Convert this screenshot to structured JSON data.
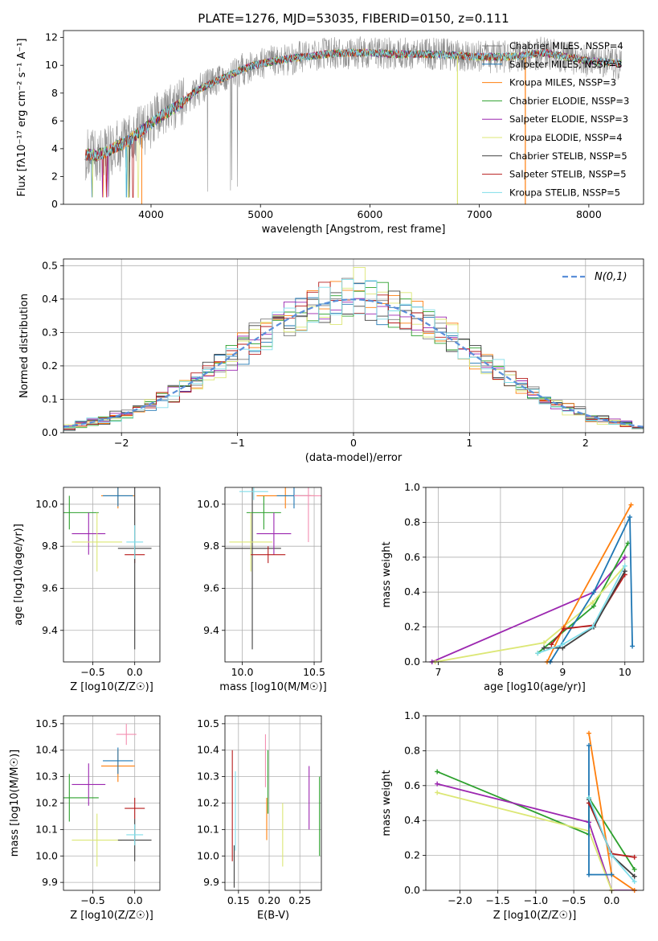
{
  "chart_data": [
    {
      "type": "line",
      "title": "PLATE=1276, MJD=53035, FIBERID=0150, z=0.111",
      "xlabel": "wavelength [Angstrom, rest frame]",
      "ylabel": "Flux [fλ10⁻¹⁷ erg cm⁻² s⁻¹ A⁻¹]",
      "xlim": [
        3200,
        8500
      ],
      "ylim": [
        0,
        12.5
      ],
      "xticks": [
        4000,
        5000,
        6000,
        7000,
        8000
      ],
      "yticks": [
        0,
        2,
        4,
        6,
        8,
        10,
        12
      ],
      "legend_position": "right",
      "grid": false,
      "envelope": {
        "x": [
          3400,
          3500,
          3600,
          3700,
          3800,
          3900,
          4000,
          4100,
          4200,
          4300,
          4400,
          4500,
          4600,
          4700,
          4800,
          4900,
          5000,
          5200,
          5400,
          5600,
          5800,
          6000,
          6200,
          6400,
          6600,
          6800,
          7000,
          7200,
          7400,
          7600,
          7800,
          8000,
          8200,
          8300
        ],
        "y": [
          3.6,
          3.5,
          3.8,
          4.2,
          4.6,
          5.2,
          5.8,
          6.4,
          6.9,
          7.4,
          8.1,
          8.5,
          8.9,
          9.2,
          9.6,
          9.9,
          10.1,
          10.4,
          10.6,
          10.8,
          10.9,
          10.9,
          10.8,
          10.8,
          10.8,
          10.7,
          10.6,
          10.6,
          10.7,
          10.9,
          10.6,
          10.3,
          10.2,
          10.1
        ]
      },
      "series": [
        {
          "name": "Chabrier MILES, N_SSP=4",
          "color": "#7f7f7f"
        },
        {
          "name": "Salpeter MILES, N_SSP=3",
          "color": "#1f77b4"
        },
        {
          "name": "Kroupa MILES, N_SSP=3",
          "color": "#ff7f0e"
        },
        {
          "name": "Chabrier ELODIE, N_SSP=3",
          "color": "#2ca02c"
        },
        {
          "name": "Salpeter ELODIE, N_SSP=3",
          "color": "#9c27b0"
        },
        {
          "name": "Kroupa ELODIE, N_SSP=4",
          "color": "#dce775"
        },
        {
          "name": "Chabrier STELIB, N_SSP=5",
          "color": "#404040"
        },
        {
          "name": "Salpeter STELIB, N_SSP=5",
          "color": "#b71c1c"
        },
        {
          "name": "Kroupa STELIB, N_SSP=5",
          "color": "#80deea"
        }
      ]
    },
    {
      "type": "line",
      "xlabel": "(data-model)/error",
      "ylabel": "Normed distribution",
      "xlim": [
        -2.5,
        2.5
      ],
      "ylim": [
        0,
        0.52
      ],
      "xticks": [
        -2,
        -1,
        0,
        1,
        2
      ],
      "yticks": [
        0.0,
        0.1,
        0.2,
        0.3,
        0.4,
        0.5
      ],
      "grid": true,
      "legend_position": "top-right",
      "legend": "N(0,1)",
      "gaussian": {
        "mean": 0,
        "sigma": 1
      }
    },
    {
      "type": "scatter",
      "xlabel": "Z [log10(Z/Z☉)]",
      "ylabel": "age  [log10(age/yr)]",
      "xlim": [
        -0.85,
        0.3
      ],
      "ylim": [
        9.25,
        10.08
      ],
      "xticks": [
        -0.5,
        0.0
      ],
      "yticks": [
        9.4,
        9.6,
        9.8,
        10.0
      ],
      "points": [
        {
          "x": -0.78,
          "y": 9.96,
          "xerr": 0.35,
          "yerr": 0.08,
          "color": "#2ca02c"
        },
        {
          "x": -0.55,
          "y": 9.86,
          "xerr": 0.2,
          "yerr": 0.1,
          "color": "#9c27b0"
        },
        {
          "x": -0.45,
          "y": 9.82,
          "xerr": 0.3,
          "yerr": 0.14,
          "color": "#dce775"
        },
        {
          "x": -0.2,
          "y": 10.04,
          "xerr": 0.2,
          "yerr": 0.06,
          "color": "#ff7f0e"
        },
        {
          "x": -0.2,
          "y": 10.04,
          "xerr": 0.18,
          "yerr": 0.05,
          "color": "#1f77b4"
        },
        {
          "x": 0.0,
          "y": 9.76,
          "xerr": 0.12,
          "yerr": 0.04,
          "color": "#b71c1c"
        },
        {
          "x": 0.0,
          "y": 9.79,
          "xerr": 0.2,
          "yerr": 0.48,
          "color": "#404040"
        },
        {
          "x": 0.0,
          "y": 9.82,
          "xerr": 0.1,
          "yerr": 0.08,
          "color": "#80deea"
        }
      ]
    },
    {
      "type": "scatter",
      "xlabel": "mass [log10(M/M☉)]",
      "xlim": [
        9.88,
        10.55
      ],
      "ylim": [
        9.25,
        10.08
      ],
      "xticks": [
        10.0,
        10.5
      ],
      "yticks": [
        9.4,
        9.6,
        9.8,
        10.0
      ],
      "points": [
        {
          "x": 10.07,
          "y": 9.79,
          "xerr": 0.2,
          "yerr": 0.48,
          "color": "#404040"
        },
        {
          "x": 10.15,
          "y": 9.96,
          "xerr": 0.12,
          "yerr": 0.08,
          "color": "#2ca02c"
        },
        {
          "x": 10.22,
          "y": 9.86,
          "xerr": 0.12,
          "yerr": 0.1,
          "color": "#9c27b0"
        },
        {
          "x": 10.06,
          "y": 9.82,
          "xerr": 0.15,
          "yerr": 0.14,
          "color": "#dce775"
        },
        {
          "x": 10.3,
          "y": 10.04,
          "xerr": 0.2,
          "yerr": 0.06,
          "color": "#ff7f0e"
        },
        {
          "x": 10.36,
          "y": 10.04,
          "xerr": 0.12,
          "yerr": 0.06,
          "color": "#1f77b4"
        },
        {
          "x": 10.18,
          "y": 9.76,
          "xerr": 0.12,
          "yerr": 0.04,
          "color": "#b71c1c"
        },
        {
          "x": 10.46,
          "y": 10.04,
          "xerr": 0.1,
          "yerr": 0.22,
          "color": "#f48fb1"
        },
        {
          "x": 10.08,
          "y": 10.06,
          "xerr": 0.1,
          "yerr": 0.04,
          "color": "#80deea"
        }
      ]
    },
    {
      "type": "line",
      "xlabel": "age  [log10(age/yr)]",
      "ylabel": "mass weight",
      "xlim": [
        6.8,
        10.3
      ],
      "ylim": [
        0,
        1.0
      ],
      "xticks": [
        7,
        8,
        9,
        10
      ],
      "yticks": [
        0.0,
        0.2,
        0.4,
        0.6,
        0.8,
        1.0
      ],
      "grid": true,
      "series": [
        {
          "color": "#9c27b0",
          "x": [
            6.9,
            9.5,
            10.0
          ],
          "y": [
            0.0,
            0.4,
            0.6
          ]
        },
        {
          "color": "#2ca02c",
          "x": [
            8.6,
            9.5,
            10.05
          ],
          "y": [
            0.05,
            0.32,
            0.68
          ]
        },
        {
          "color": "#dce775",
          "x": [
            6.95,
            8.7,
            9.48,
            10.0
          ],
          "y": [
            0.0,
            0.11,
            0.34,
            0.55
          ]
        },
        {
          "color": "#ff7f0e",
          "x": [
            8.75,
            9.02,
            10.1
          ],
          "y": [
            0.0,
            0.2,
            0.9
          ]
        },
        {
          "color": "#1f77b4",
          "x": [
            8.8,
            9.5,
            10.08,
            10.12
          ],
          "y": [
            0.0,
            0.4,
            0.83,
            0.09
          ]
        },
        {
          "color": "#b71c1c",
          "x": [
            8.82,
            9.02,
            9.5,
            10.0
          ],
          "y": [
            0.1,
            0.19,
            0.21,
            0.5
          ]
        },
        {
          "color": "#404040",
          "x": [
            8.7,
            9.0,
            9.5,
            10.0
          ],
          "y": [
            0.08,
            0.08,
            0.2,
            0.52
          ]
        },
        {
          "color": "#80deea",
          "x": [
            8.6,
            9.0,
            9.48,
            10.0
          ],
          "y": [
            0.05,
            0.1,
            0.2,
            0.55
          ]
        }
      ]
    },
    {
      "type": "scatter",
      "xlabel": "Z [log10(Z/Z☉)]",
      "ylabel": "mass [log10(M/M☉)]",
      "xlim": [
        -0.85,
        0.3
      ],
      "ylim": [
        9.87,
        10.53
      ],
      "xticks": [
        -0.5,
        0.0
      ],
      "yticks": [
        9.9,
        10.0,
        10.1,
        10.2,
        10.3,
        10.4,
        10.5
      ],
      "points": [
        {
          "x": -0.78,
          "y": 10.22,
          "xerr": 0.35,
          "yerr": 0.09,
          "color": "#2ca02c"
        },
        {
          "x": -0.55,
          "y": 10.27,
          "xerr": 0.2,
          "yerr": 0.08,
          "color": "#9c27b0"
        },
        {
          "x": -0.45,
          "y": 10.06,
          "xerr": 0.3,
          "yerr": 0.1,
          "color": "#dce775"
        },
        {
          "x": -0.2,
          "y": 10.34,
          "xerr": 0.2,
          "yerr": 0.06,
          "color": "#ff7f0e"
        },
        {
          "x": -0.2,
          "y": 10.36,
          "xerr": 0.18,
          "yerr": 0.05,
          "color": "#1f77b4"
        },
        {
          "x": 0.0,
          "y": 10.18,
          "xerr": 0.12,
          "yerr": 0.04,
          "color": "#b71c1c"
        },
        {
          "x": 0.0,
          "y": 10.06,
          "xerr": 0.2,
          "yerr": 0.08,
          "color": "#404040"
        },
        {
          "x": 0.0,
          "y": 10.08,
          "xerr": 0.1,
          "yerr": 0.04,
          "color": "#80deea"
        },
        {
          "x": -0.1,
          "y": 10.46,
          "xerr": 0.12,
          "yerr": 0.04,
          "color": "#f48fb1"
        }
      ]
    },
    {
      "type": "scatter",
      "xlabel": "E(B-V)",
      "xlim": [
        0.128,
        0.285
      ],
      "ylim": [
        9.87,
        10.53
      ],
      "xticks": [
        0.15,
        0.2,
        0.25
      ],
      "yticks": [
        9.9,
        10.0,
        10.1,
        10.2,
        10.3,
        10.4,
        10.5
      ],
      "points": [
        {
          "x": 0.14,
          "y": 10.19,
          "yerr": 0.21,
          "color": "#b71c1c"
        },
        {
          "x": 0.143,
          "y": 9.96,
          "yerr": 0.08,
          "color": "#404040"
        },
        {
          "x": 0.145,
          "y": 10.17,
          "yerr": 0.15,
          "color": "#80deea"
        },
        {
          "x": 0.194,
          "y": 10.36,
          "yerr": 0.1,
          "color": "#f48fb1"
        },
        {
          "x": 0.196,
          "y": 10.14,
          "yerr": 0.08,
          "color": "#ff7f0e"
        },
        {
          "x": 0.198,
          "y": 10.28,
          "yerr": 0.12,
          "color": "#2ca02c"
        },
        {
          "x": 0.222,
          "y": 10.08,
          "yerr": 0.12,
          "color": "#dce775"
        },
        {
          "x": 0.265,
          "y": 10.22,
          "yerr": 0.12,
          "color": "#9c27b0"
        },
        {
          "x": 0.282,
          "y": 10.15,
          "yerr": 0.15,
          "color": "#2ca02c"
        }
      ]
    },
    {
      "type": "line",
      "xlabel": "Z [log10(Z/Z☉)]",
      "ylabel": "mass weight",
      "xlim": [
        -2.45,
        0.42
      ],
      "ylim": [
        0,
        1.0
      ],
      "xticks": [
        -2.0,
        -1.5,
        -1.0,
        -0.5,
        0.0
      ],
      "yticks": [
        0.0,
        0.2,
        0.4,
        0.6,
        0.8,
        1.0
      ],
      "grid": true,
      "series": [
        {
          "color": "#2ca02c",
          "x": [
            -2.3,
            -0.3,
            -0.3,
            0.3
          ],
          "y": [
            0.68,
            0.32,
            0.53,
            0.12
          ]
        },
        {
          "color": "#9c27b0",
          "x": [
            -2.3,
            -0.3,
            0.0,
            0.3
          ],
          "y": [
            0.61,
            0.39,
            0.0,
            0.0
          ]
        },
        {
          "color": "#dce775",
          "x": [
            -2.3,
            -0.3,
            0.0
          ],
          "y": [
            0.56,
            0.34,
            0.0
          ]
        },
        {
          "color": "#ff7f0e",
          "x": [
            -0.3,
            0.0,
            0.3
          ],
          "y": [
            0.9,
            0.09,
            0.0
          ]
        },
        {
          "color": "#1f77b4",
          "x": [
            -0.3,
            -0.3,
            0.0
          ],
          "y": [
            0.83,
            0.09,
            0.09
          ]
        },
        {
          "color": "#b71c1c",
          "x": [
            -0.3,
            0.0,
            0.3
          ],
          "y": [
            0.5,
            0.21,
            0.19
          ]
        },
        {
          "color": "#404040",
          "x": [
            -0.3,
            0.0,
            0.3
          ],
          "y": [
            0.52,
            0.2,
            0.08
          ]
        },
        {
          "color": "#80deea",
          "x": [
            -0.3,
            0.0,
            0.3
          ],
          "y": [
            0.53,
            0.2,
            0.05
          ]
        }
      ]
    }
  ]
}
